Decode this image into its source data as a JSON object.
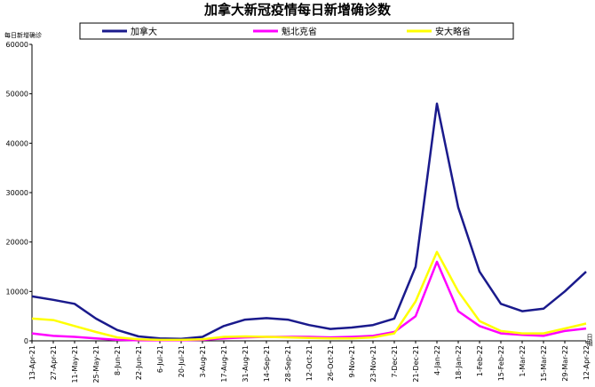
{
  "chart_data": {
    "type": "line",
    "title": "加拿大新冠疫情每日新增确诊数",
    "ylabel": "每日新增确诊",
    "xlabel": "日期",
    "ylim": [
      0,
      60000
    ],
    "yticks": [
      "0",
      "10000",
      "20000",
      "30000",
      "40000",
      "50000",
      "60000"
    ],
    "grid": false,
    "legend_position": "top",
    "x_dates": [
      "13-Apr-21",
      "27-Apr-21",
      "11-May-21",
      "25-May-21",
      "8-Jun-21",
      "22-Jun-21",
      "6-Jul-21",
      "20-Jul-21",
      "3-Aug-21",
      "17-Aug-21",
      "31-Aug-21",
      "14-Sep-21",
      "28-Sep-21",
      "12-Oct-21",
      "26-Oct-21",
      "9-Nov-21",
      "23-Nov-21",
      "7-Dec-21",
      "21-Dec-21",
      "4-Jan-22",
      "18-Jan-22",
      "1-Feb-22",
      "15-Feb-22",
      "1-Mar-22",
      "15-Mar-22",
      "29-Mar-22",
      "12-Apr-22"
    ],
    "series": [
      {
        "name": "加拿大",
        "color": "#1a1a8c",
        "values": [
          9000,
          8300,
          7500,
          4500,
          2200,
          900,
          500,
          400,
          800,
          3000,
          4300,
          4600,
          4300,
          3200,
          2400,
          2700,
          3200,
          4500,
          15000,
          48000,
          27000,
          14000,
          7500,
          6000,
          6500,
          10000,
          14000
        ]
      },
      {
        "name": "魁北克省",
        "color": "#ff00ff",
        "values": [
          1500,
          1000,
          800,
          500,
          200,
          100,
          100,
          100,
          200,
          500,
          700,
          800,
          800,
          800,
          700,
          800,
          1000,
          1800,
          5000,
          16000,
          6000,
          3000,
          1500,
          1200,
          1000,
          2000,
          2500
        ]
      },
      {
        "name": "安大略省",
        "color": "#ffff00",
        "values": [
          4500,
          4200,
          3000,
          1800,
          700,
          300,
          200,
          200,
          300,
          800,
          900,
          800,
          700,
          600,
          500,
          500,
          700,
          1500,
          8000,
          18000,
          10000,
          4000,
          2000,
          1500,
          1500,
          2500,
          3500
        ]
      }
    ]
  }
}
